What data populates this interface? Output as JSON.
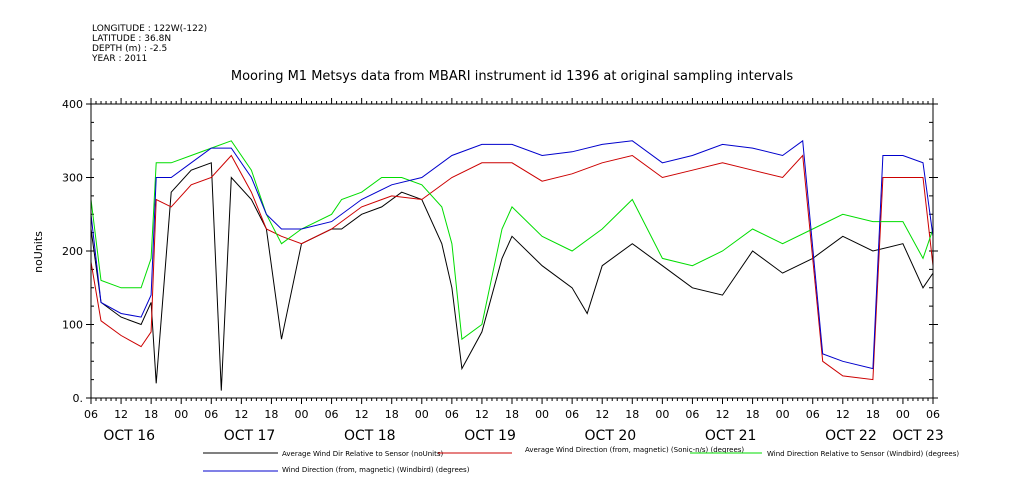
{
  "header": {
    "meta_lines": [
      "LONGITUDE : 122W(-122)",
      "LATITUDE : 36.8N",
      "DEPTH (m) : -2.5",
      "YEAR : 2011"
    ]
  },
  "chart_data": {
    "type": "line",
    "title": "Mooring M1 Metsys data from MBARI instrument id 1396 at original sampling intervals",
    "ylabel": "noUnits",
    "xlabel": "",
    "ylim": [
      0,
      400
    ],
    "yticks": [
      "0.",
      "100",
      "200",
      "300",
      "400"
    ],
    "xlim": [
      "2011-10-16T06:00",
      "2011-10-23T06:00"
    ],
    "x_hour_labels": [
      "06",
      "12",
      "18",
      "00",
      "06",
      "12",
      "18",
      "00",
      "06",
      "12",
      "18",
      "00",
      "06",
      "12",
      "18",
      "00",
      "06",
      "12",
      "18",
      "00",
      "06",
      "12",
      "18",
      "00",
      "06",
      "12",
      "18",
      "00",
      "06"
    ],
    "day_labels": [
      "OCT 16",
      "OCT 17",
      "OCT 18",
      "OCT 19",
      "OCT 20",
      "OCT 21",
      "OCT 22",
      "OCT 23"
    ],
    "grid": false,
    "legend_position": "bottom",
    "series": [
      {
        "name": "Average Wind Dir Relative to Sensor (noUnits)",
        "color": "#000000",
        "x": [
          "2011-10-16T06:00",
          "2011-10-16T08:00",
          "2011-10-16T12:00",
          "2011-10-16T16:00",
          "2011-10-16T18:00",
          "2011-10-16T19:00",
          "2011-10-16T22:00",
          "2011-10-17T02:00",
          "2011-10-17T06:00",
          "2011-10-17T08:00",
          "2011-10-17T10:00",
          "2011-10-17T14:00",
          "2011-10-17T17:00",
          "2011-10-17T20:00",
          "2011-10-18T00:00",
          "2011-10-18T06:00",
          "2011-10-18T08:00",
          "2011-10-18T12:00",
          "2011-10-18T16:00",
          "2011-10-18T20:00",
          "2011-10-19T00:00",
          "2011-10-19T04:00",
          "2011-10-19T06:00",
          "2011-10-19T08:00",
          "2011-10-19T12:00",
          "2011-10-19T16:00",
          "2011-10-19T18:00",
          "2011-10-20T00:00",
          "2011-10-20T06:00",
          "2011-10-20T09:00",
          "2011-10-20T12:00",
          "2011-10-20T18:00",
          "2011-10-21T00:00",
          "2011-10-21T06:00",
          "2011-10-21T12:00",
          "2011-10-21T18:00",
          "2011-10-22T00:00",
          "2011-10-22T06:00",
          "2011-10-22T12:00",
          "2011-10-22T18:00",
          "2011-10-23T00:00",
          "2011-10-23T04:00",
          "2011-10-23T06:00"
        ],
        "y": [
          230,
          130,
          110,
          100,
          130,
          20,
          280,
          310,
          320,
          10,
          300,
          270,
          230,
          80,
          210,
          230,
          230,
          250,
          260,
          280,
          270,
          210,
          150,
          40,
          90,
          190,
          220,
          180,
          150,
          115,
          180,
          210,
          180,
          150,
          140,
          200,
          170,
          190,
          220,
          200,
          210,
          150,
          170
        ]
      },
      {
        "name": "Average Wind Direction (from, magnetic) (Sonic-n/s) (degrees)",
        "color": "#cc0000",
        "x": [
          "2011-10-16T06:00",
          "2011-10-16T08:00",
          "2011-10-16T12:00",
          "2011-10-16T16:00",
          "2011-10-16T18:00",
          "2011-10-16T19:00",
          "2011-10-16T22:00",
          "2011-10-17T02:00",
          "2011-10-17T06:00",
          "2011-10-17T10:00",
          "2011-10-17T14:00",
          "2011-10-17T17:00",
          "2011-10-17T20:00",
          "2011-10-18T00:00",
          "2011-10-18T06:00",
          "2011-10-18T12:00",
          "2011-10-18T18:00",
          "2011-10-19T00:00",
          "2011-10-19T06:00",
          "2011-10-19T12:00",
          "2011-10-19T18:00",
          "2011-10-20T00:00",
          "2011-10-20T06:00",
          "2011-10-20T12:00",
          "2011-10-20T18:00",
          "2011-10-21T00:00",
          "2011-10-21T06:00",
          "2011-10-21T12:00",
          "2011-10-21T18:00",
          "2011-10-22T00:00",
          "2011-10-22T04:00",
          "2011-10-22T08:00",
          "2011-10-22T12:00",
          "2011-10-22T18:00",
          "2011-10-22T20:00",
          "2011-10-23T00:00",
          "2011-10-23T04:00",
          "2011-10-23T06:00"
        ],
        "y": [
          185,
          105,
          85,
          70,
          90,
          270,
          260,
          290,
          300,
          330,
          280,
          230,
          220,
          210,
          230,
          260,
          275,
          270,
          300,
          320,
          320,
          295,
          305,
          320,
          330,
          300,
          310,
          320,
          310,
          300,
          330,
          50,
          30,
          25,
          300,
          300,
          300,
          180
        ]
      },
      {
        "name": "Wind Direction Relative to Sensor (Windbird) (degrees)",
        "color": "#00dd00",
        "x": [
          "2011-10-16T06:00",
          "2011-10-16T08:00",
          "2011-10-16T12:00",
          "2011-10-16T16:00",
          "2011-10-16T18:00",
          "2011-10-16T19:00",
          "2011-10-16T22:00",
          "2011-10-17T02:00",
          "2011-10-17T06:00",
          "2011-10-17T10:00",
          "2011-10-17T14:00",
          "2011-10-17T17:00",
          "2011-10-17T20:00",
          "2011-10-18T00:00",
          "2011-10-18T06:00",
          "2011-10-18T08:00",
          "2011-10-18T12:00",
          "2011-10-18T16:00",
          "2011-10-18T20:00",
          "2011-10-19T00:00",
          "2011-10-19T04:00",
          "2011-10-19T06:00",
          "2011-10-19T08:00",
          "2011-10-19T12:00",
          "2011-10-19T16:00",
          "2011-10-19T18:00",
          "2011-10-20T00:00",
          "2011-10-20T06:00",
          "2011-10-20T12:00",
          "2011-10-20T18:00",
          "2011-10-21T00:00",
          "2011-10-21T06:00",
          "2011-10-21T12:00",
          "2011-10-21T18:00",
          "2011-10-22T00:00",
          "2011-10-22T06:00",
          "2011-10-22T12:00",
          "2011-10-22T18:00",
          "2011-10-23T00:00",
          "2011-10-23T04:00",
          "2011-10-23T06:00"
        ],
        "y": [
          270,
          160,
          150,
          150,
          190,
          320,
          320,
          330,
          340,
          350,
          310,
          250,
          210,
          230,
          250,
          270,
          280,
          300,
          300,
          290,
          260,
          210,
          80,
          100,
          230,
          260,
          220,
          200,
          230,
          270,
          190,
          180,
          200,
          230,
          210,
          230,
          250,
          240,
          240,
          190,
          230
        ]
      },
      {
        "name": "Wind Direction (from, magnetic) (Windbird) (degrees)",
        "color": "#0000cc",
        "x": [
          "2011-10-16T06:00",
          "2011-10-16T08:00",
          "2011-10-16T12:00",
          "2011-10-16T16:00",
          "2011-10-16T18:00",
          "2011-10-16T19:00",
          "2011-10-16T22:00",
          "2011-10-17T02:00",
          "2011-10-17T06:00",
          "2011-10-17T10:00",
          "2011-10-17T14:00",
          "2011-10-17T17:00",
          "2011-10-17T20:00",
          "2011-10-18T00:00",
          "2011-10-18T06:00",
          "2011-10-18T12:00",
          "2011-10-18T18:00",
          "2011-10-19T00:00",
          "2011-10-19T06:00",
          "2011-10-19T12:00",
          "2011-10-19T18:00",
          "2011-10-20T00:00",
          "2011-10-20T06:00",
          "2011-10-20T12:00",
          "2011-10-20T18:00",
          "2011-10-21T00:00",
          "2011-10-21T06:00",
          "2011-10-21T12:00",
          "2011-10-21T18:00",
          "2011-10-22T00:00",
          "2011-10-22T04:00",
          "2011-10-22T08:00",
          "2011-10-22T12:00",
          "2011-10-22T18:00",
          "2011-10-22T20:00",
          "2011-10-23T00:00",
          "2011-10-23T04:00",
          "2011-10-23T06:00"
        ],
        "y": [
          250,
          130,
          115,
          110,
          140,
          300,
          300,
          320,
          340,
          340,
          300,
          250,
          230,
          230,
          240,
          270,
          290,
          300,
          330,
          345,
          345,
          330,
          335,
          345,
          350,
          320,
          330,
          345,
          340,
          330,
          350,
          60,
          50,
          40,
          330,
          330,
          320,
          220
        ]
      }
    ]
  }
}
